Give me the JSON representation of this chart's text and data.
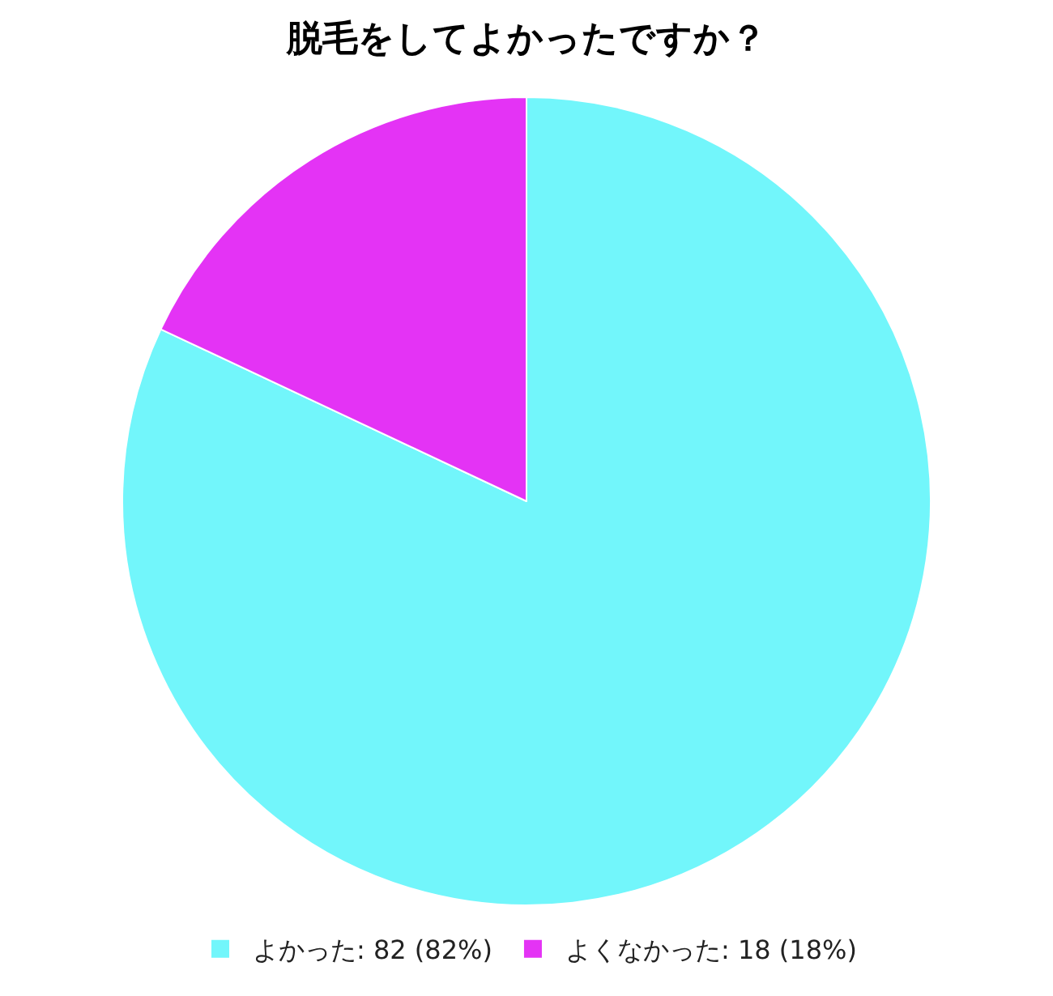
{
  "chart_data": {
    "type": "pie",
    "title": "脱毛をしてよかったですか？",
    "categories": [
      "よかった: 82 (82%)",
      "よくなかった: 18 (18%)"
    ],
    "values": [
      82,
      18
    ],
    "colors": [
      "#72f6fb",
      "#e433f5"
    ],
    "legend": "bottom"
  }
}
